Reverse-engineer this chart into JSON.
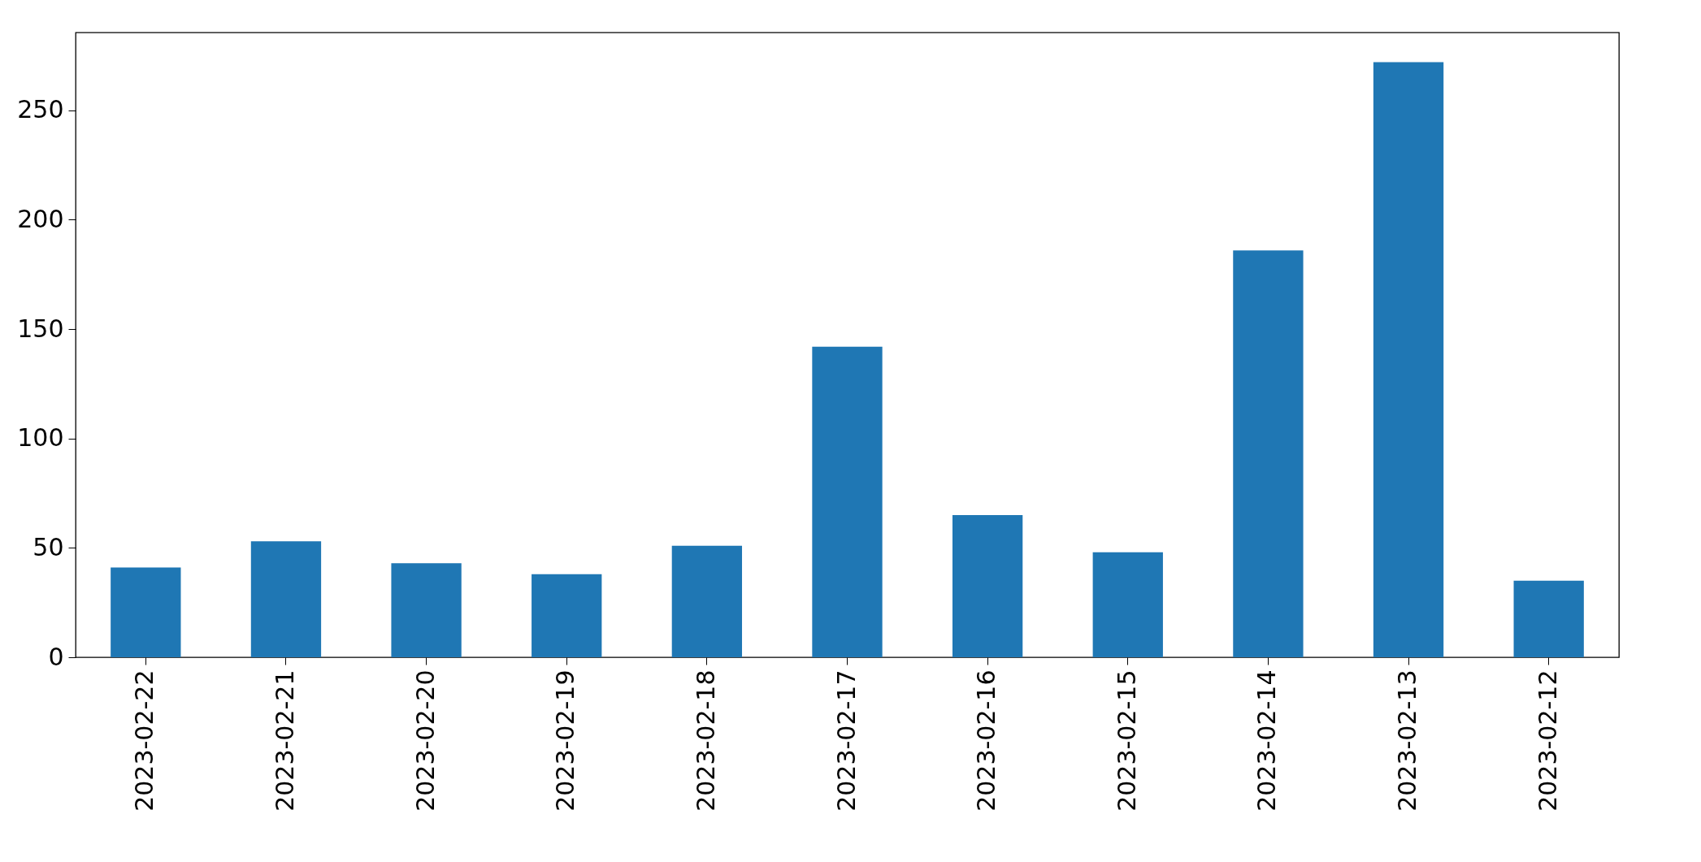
{
  "chart_data": {
    "type": "bar",
    "categories": [
      "2023-02-22",
      "2023-02-21",
      "2023-02-20",
      "2023-02-19",
      "2023-02-18",
      "2023-02-17",
      "2023-02-16",
      "2023-02-15",
      "2023-02-14",
      "2023-02-13",
      "2023-02-12"
    ],
    "values": [
      41,
      53,
      43,
      38,
      51,
      142,
      65,
      48,
      186,
      272,
      35
    ],
    "color": "#1f77b4",
    "ylim": [
      0,
      285.6
    ],
    "yticks": [
      0,
      50,
      100,
      150,
      200,
      250
    ],
    "grid": false
  }
}
